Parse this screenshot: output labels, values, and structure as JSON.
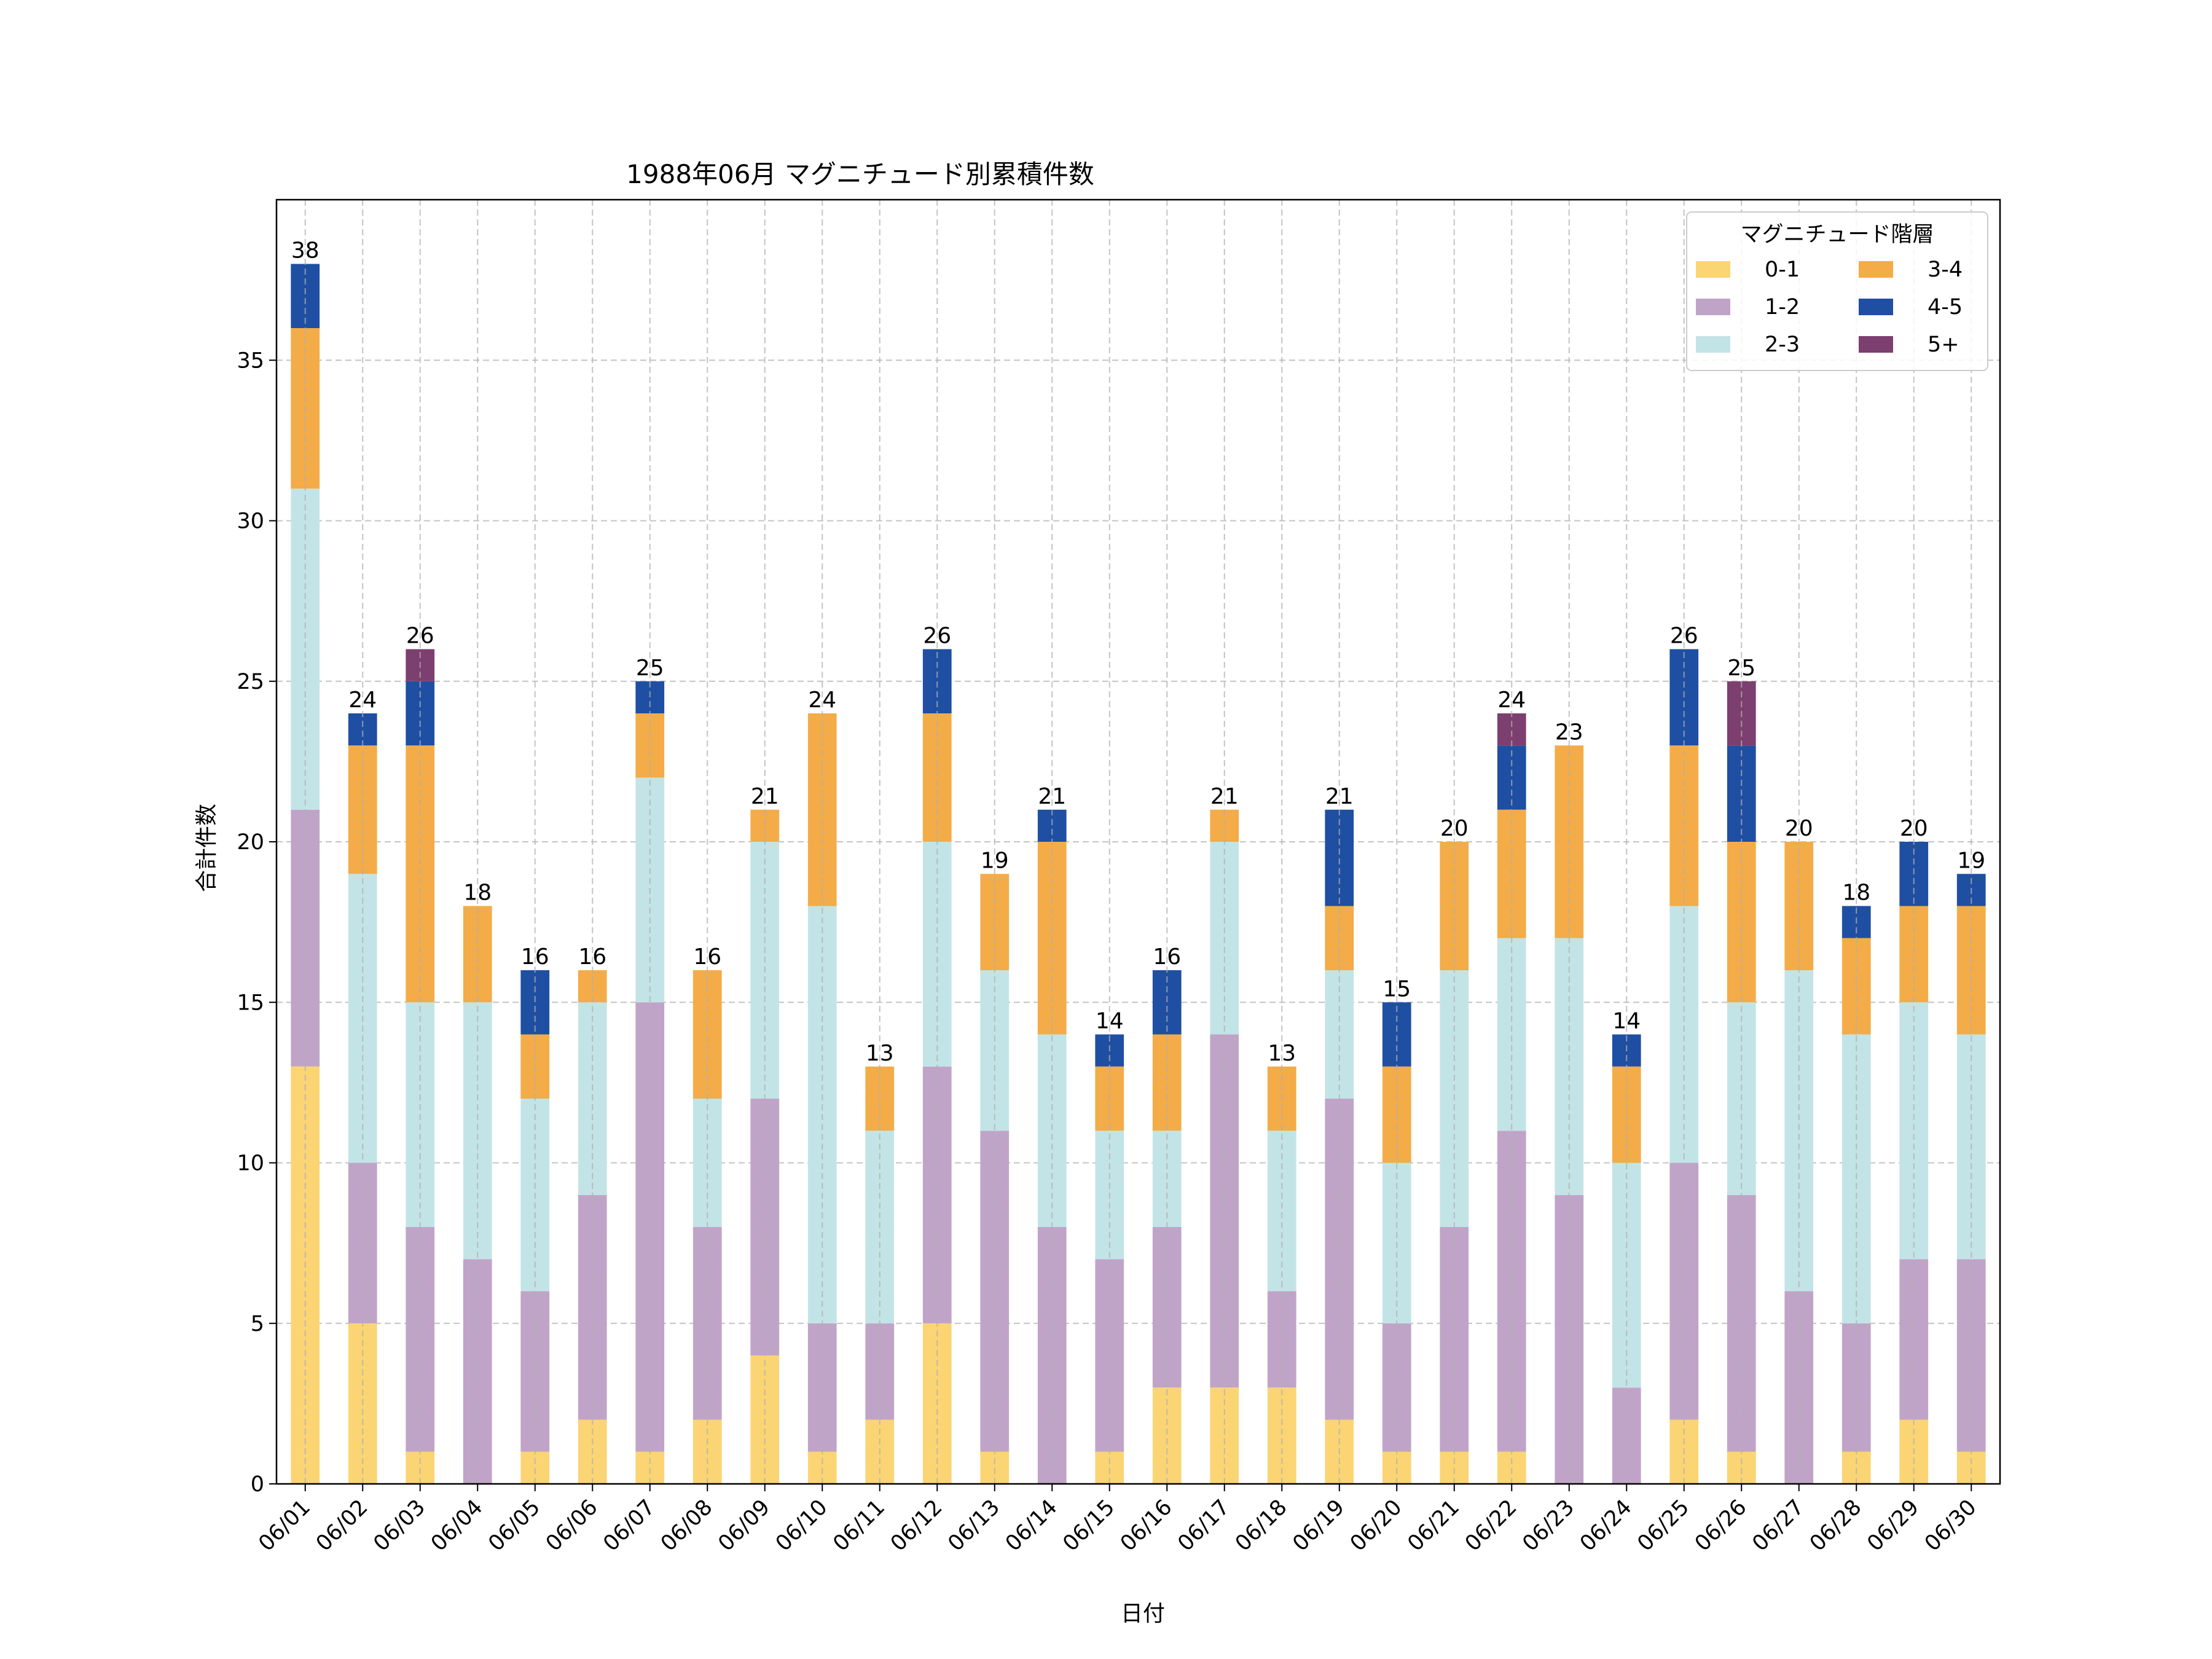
{
  "chart_data": {
    "type": "bar",
    "stacked": true,
    "title": "1988年06月 マグニチュード別累積件数",
    "xlabel": "日付",
    "ylabel": "合計件数",
    "ylim": [
      0,
      40
    ],
    "yticks": [
      0,
      5,
      10,
      15,
      20,
      25,
      30,
      35
    ],
    "grid": true,
    "legend_title": "マグニチュード階層",
    "legend_position": "top-right",
    "categories": [
      "06/01",
      "06/02",
      "06/03",
      "06/04",
      "06/05",
      "06/06",
      "06/07",
      "06/08",
      "06/09",
      "06/10",
      "06/11",
      "06/12",
      "06/13",
      "06/14",
      "06/15",
      "06/16",
      "06/17",
      "06/18",
      "06/19",
      "06/20",
      "06/21",
      "06/22",
      "06/23",
      "06/24",
      "06/25",
      "06/26",
      "06/27",
      "06/28",
      "06/29",
      "06/30"
    ],
    "series": [
      {
        "name": "0-1",
        "color": "#FBD574",
        "values": [
          13,
          5,
          1,
          0,
          1,
          2,
          1,
          2,
          4,
          1,
          2,
          5,
          1,
          0,
          1,
          3,
          3,
          3,
          2,
          1,
          1,
          1,
          0,
          0,
          2,
          1,
          0,
          1,
          2,
          1
        ]
      },
      {
        "name": "1-2",
        "color": "#C0A4C8",
        "values": [
          8,
          5,
          7,
          7,
          5,
          7,
          14,
          6,
          8,
          4,
          3,
          8,
          10,
          8,
          6,
          5,
          11,
          3,
          10,
          4,
          7,
          10,
          9,
          3,
          8,
          8,
          6,
          4,
          5,
          6
        ]
      },
      {
        "name": "2-3",
        "color": "#C3E4E6",
        "values": [
          10,
          9,
          7,
          8,
          6,
          6,
          7,
          4,
          8,
          13,
          6,
          7,
          5,
          6,
          4,
          3,
          6,
          5,
          4,
          5,
          8,
          6,
          8,
          7,
          8,
          6,
          10,
          9,
          8,
          7
        ]
      },
      {
        "name": "3-4",
        "color": "#F3AC48",
        "values": [
          5,
          4,
          8,
          3,
          2,
          1,
          2,
          4,
          1,
          6,
          2,
          4,
          3,
          6,
          2,
          3,
          1,
          2,
          2,
          3,
          4,
          4,
          6,
          3,
          5,
          5,
          4,
          3,
          3,
          4
        ]
      },
      {
        "name": "4-5",
        "color": "#1F4FA2",
        "values": [
          2,
          1,
          2,
          0,
          2,
          0,
          1,
          0,
          0,
          0,
          0,
          2,
          0,
          1,
          1,
          2,
          0,
          0,
          3,
          2,
          0,
          2,
          0,
          1,
          3,
          3,
          0,
          1,
          2,
          1
        ]
      },
      {
        "name": "5+",
        "color": "#7C3F6F",
        "values": [
          0,
          0,
          1,
          0,
          0,
          0,
          0,
          0,
          0,
          0,
          0,
          0,
          0,
          0,
          0,
          0,
          0,
          0,
          0,
          0,
          0,
          1,
          0,
          0,
          0,
          2,
          0,
          0,
          0,
          0
        ]
      }
    ],
    "totals": [
      38,
      24,
      26,
      18,
      16,
      16,
      25,
      16,
      21,
      24,
      13,
      26,
      19,
      21,
      14,
      16,
      21,
      13,
      21,
      15,
      20,
      24,
      23,
      14,
      26,
      25,
      20,
      18,
      20,
      19
    ]
  }
}
